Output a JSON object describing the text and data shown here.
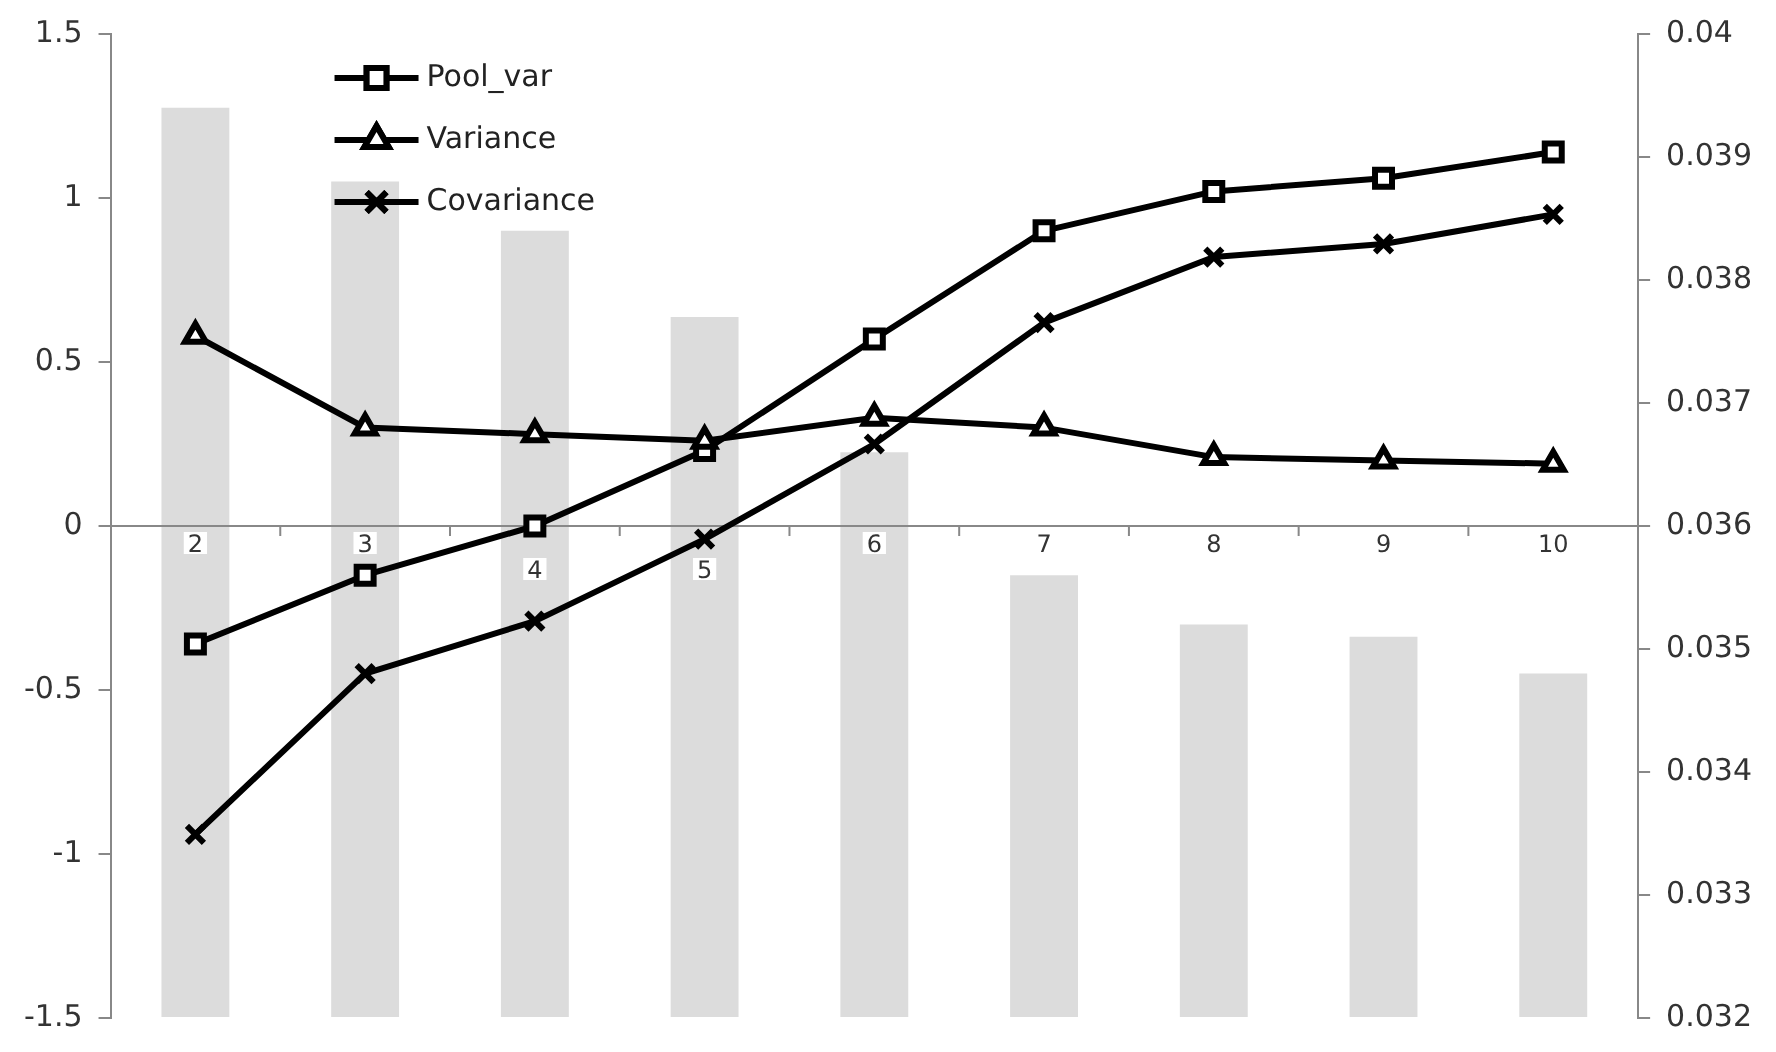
{
  "chart_data": {
    "type": "bar",
    "categories": [
      "2",
      "3",
      "4",
      "5",
      "6",
      "7",
      "8",
      "9",
      "10"
    ],
    "series": [
      {
        "axis": "y2",
        "color": "#dcdcdc",
        "values": [
          0.0394,
          0.0388,
          0.0384,
          0.0377,
          0.0366,
          0.0356,
          0.0352,
          0.0351,
          0.0348
        ]
      },
      {
        "type": "line",
        "name": "Pool_var",
        "color": "#000000",
        "marker": "square",
        "values": [
          -0.36,
          -0.15,
          0.0,
          0.23,
          0.57,
          0.9,
          1.02,
          1.06,
          1.14
        ]
      },
      {
        "type": "line",
        "name": "Variance",
        "color": "#000000",
        "marker": "triangle",
        "values": [
          0.58,
          0.3,
          0.28,
          0.26,
          0.33,
          0.3,
          0.21,
          0.2,
          0.19
        ]
      },
      {
        "type": "line",
        "name": "Covariance",
        "color": "#000000",
        "marker": "cross",
        "values": [
          -0.94,
          -0.45,
          -0.29,
          -0.04,
          0.25,
          0.62,
          0.82,
          0.86,
          0.95
        ]
      }
    ],
    "ylim": [
      -1.5,
      1.5
    ],
    "yticks": [
      -1.5,
      -1,
      -0.5,
      0,
      0.5,
      1,
      1.5
    ],
    "y2lim": [
      0.032,
      0.04
    ],
    "y2ticks": [
      0.032,
      0.033,
      0.034,
      0.035,
      0.036,
      0.037,
      0.038,
      0.039,
      0.04
    ],
    "legend": "top left"
  }
}
